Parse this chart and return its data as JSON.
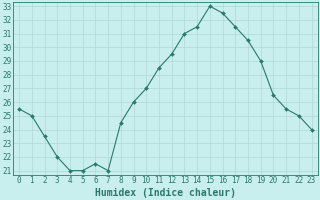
{
  "x": [
    0,
    1,
    2,
    3,
    4,
    5,
    6,
    7,
    8,
    9,
    10,
    11,
    12,
    13,
    14,
    15,
    16,
    17,
    18,
    19,
    20,
    21,
    22,
    23
  ],
  "y": [
    25.5,
    25.0,
    23.5,
    22.0,
    21.0,
    21.0,
    21.5,
    21.0,
    24.5,
    26.0,
    27.0,
    28.5,
    29.5,
    31.0,
    31.5,
    33.0,
    32.5,
    31.5,
    30.5,
    29.0,
    26.5,
    25.5,
    25.0,
    24.0
  ],
  "line_color": "#2a7a6a",
  "marker": "D",
  "marker_size": 2.0,
  "bg_color": "#c8eeee",
  "grid_color": "#b0d8d8",
  "xlabel": "Humidex (Indice chaleur)",
  "xlim": [
    -0.5,
    23.5
  ],
  "ylim": [
    20.7,
    33.3
  ],
  "yticks": [
    21,
    22,
    23,
    24,
    25,
    26,
    27,
    28,
    29,
    30,
    31,
    32,
    33
  ],
  "xticks": [
    0,
    1,
    2,
    3,
    4,
    5,
    6,
    7,
    8,
    9,
    10,
    11,
    12,
    13,
    14,
    15,
    16,
    17,
    18,
    19,
    20,
    21,
    22,
    23
  ],
  "tick_fontsize": 5.5,
  "xlabel_fontsize": 7.0,
  "tick_color": "#2a7a6a",
  "spine_color": "#2a7a6a"
}
